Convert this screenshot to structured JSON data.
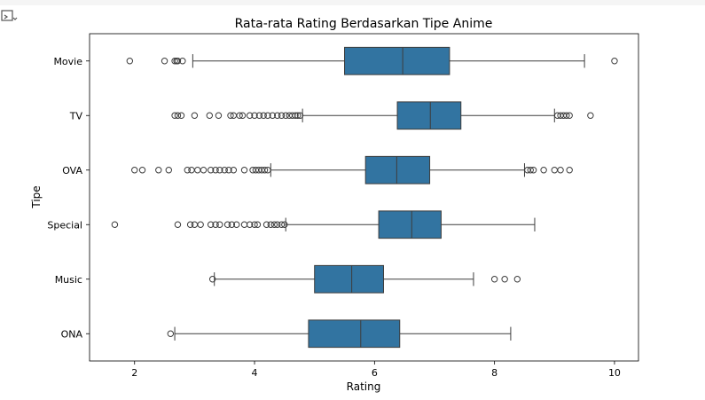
{
  "notebook": {
    "output_icon": "output-toggle-icon"
  },
  "chart_data": {
    "type": "boxplot",
    "orientation": "horizontal",
    "title": "Rata-rata Rating Berdasarkan Tipe Anime",
    "xlabel": "Rating",
    "ylabel": "Tipe",
    "xlim": [
      1.25,
      10.4
    ],
    "xticks": [
      2,
      4,
      6,
      8,
      10
    ],
    "box_color": "#3274a1",
    "line_color": "#3d3d3d",
    "grid": false,
    "categories": [
      "Movie",
      "TV",
      "OVA",
      "Special",
      "Music",
      "ONA"
    ],
    "boxes": [
      {
        "category": "Movie",
        "whisker_low": 2.97,
        "q1": 5.5,
        "median": 6.47,
        "q3": 7.25,
        "whisker_high": 9.5,
        "outliers": [
          1.92,
          2.5,
          2.67,
          2.7,
          2.72,
          2.8,
          10.0
        ]
      },
      {
        "category": "TV",
        "whisker_low": 4.8,
        "q1": 6.38,
        "median": 6.93,
        "q3": 7.44,
        "whisker_high": 9.0,
        "outliers": [
          2.67,
          2.72,
          2.78,
          3.0,
          3.25,
          3.4,
          3.6,
          3.65,
          3.75,
          3.8,
          3.92,
          4.0,
          4.08,
          4.15,
          4.22,
          4.3,
          4.38,
          4.45,
          4.52,
          4.58,
          4.63,
          4.68,
          4.72,
          4.76,
          9.05,
          9.1,
          9.15,
          9.2,
          9.25,
          9.6
        ]
      },
      {
        "category": "OVA",
        "whisker_low": 4.27,
        "q1": 5.85,
        "median": 6.37,
        "q3": 6.92,
        "whisker_high": 8.5,
        "outliers": [
          2.0,
          2.13,
          2.4,
          2.57,
          2.88,
          2.95,
          3.05,
          3.15,
          3.27,
          3.35,
          3.42,
          3.5,
          3.57,
          3.65,
          3.83,
          3.97,
          4.02,
          4.07,
          4.12,
          4.17,
          4.22,
          8.55,
          8.6,
          8.65,
          8.82,
          9.0,
          9.1,
          9.25
        ]
      },
      {
        "category": "Special",
        "whisker_low": 4.52,
        "q1": 6.07,
        "median": 6.62,
        "q3": 7.11,
        "whisker_high": 8.67,
        "outliers": [
          1.67,
          2.72,
          2.93,
          3.0,
          3.1,
          3.27,
          3.35,
          3.42,
          3.55,
          3.62,
          3.7,
          3.83,
          3.92,
          4.0,
          4.05,
          4.2,
          4.27,
          4.33,
          4.38,
          4.45,
          4.5
        ]
      },
      {
        "category": "Music",
        "whisker_low": 3.33,
        "q1": 5.0,
        "median": 5.62,
        "q3": 6.15,
        "whisker_high": 7.65,
        "outliers": [
          3.3,
          8.0,
          8.17,
          8.38
        ]
      },
      {
        "category": "ONA",
        "whisker_low": 2.67,
        "q1": 4.9,
        "median": 5.77,
        "q3": 6.42,
        "whisker_high": 8.27,
        "outliers": [
          2.6
        ]
      }
    ]
  }
}
